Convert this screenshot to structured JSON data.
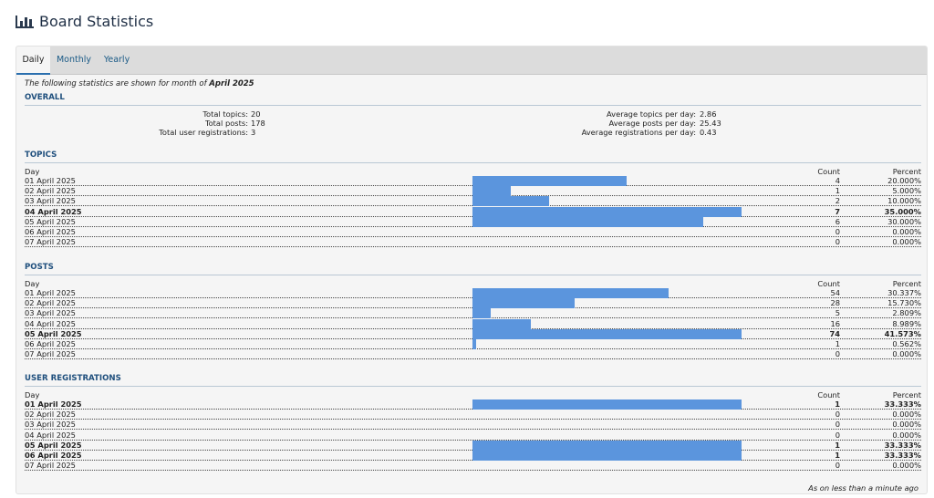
{
  "header": {
    "title": "Board Statistics",
    "icon": "bar-chart-icon"
  },
  "tabs": [
    {
      "label": "Daily",
      "active": true
    },
    {
      "label": "Monthly",
      "active": false
    },
    {
      "label": "Yearly",
      "active": false
    }
  ],
  "intro": {
    "prefix": "The following statistics are shown for month of ",
    "period": "April 2025"
  },
  "overall": {
    "title": "OVERALL",
    "left": [
      {
        "label": "Total topics:",
        "value": "20"
      },
      {
        "label": "Total posts:",
        "value": "178"
      },
      {
        "label": "Total user registrations:",
        "value": "3"
      }
    ],
    "right": [
      {
        "label": "Average topics per day:",
        "value": "2.86"
      },
      {
        "label": "Average posts per day:",
        "value": "25.43"
      },
      {
        "label": "Average registrations per day:",
        "value": "0.43"
      }
    ]
  },
  "columns": {
    "day": "Day",
    "count": "Count",
    "percent": "Percent"
  },
  "sections": [
    {
      "key": "topics",
      "title": "TOPICS",
      "rows": [
        {
          "day": "01 April 2025",
          "count": "4",
          "percent": "20.000%",
          "share": 0.5714,
          "bold": false
        },
        {
          "day": "02 April 2025",
          "count": "1",
          "percent": "5.000%",
          "share": 0.1429,
          "bold": false
        },
        {
          "day": "03 April 2025",
          "count": "2",
          "percent": "10.000%",
          "share": 0.2857,
          "bold": false
        },
        {
          "day": "04 April 2025",
          "count": "7",
          "percent": "35.000%",
          "share": 1.0,
          "bold": true
        },
        {
          "day": "05 April 2025",
          "count": "6",
          "percent": "30.000%",
          "share": 0.8571,
          "bold": false
        },
        {
          "day": "06 April 2025",
          "count": "0",
          "percent": "0.000%",
          "share": 0,
          "bold": false
        },
        {
          "day": "07 April 2025",
          "count": "0",
          "percent": "0.000%",
          "share": 0,
          "bold": false
        }
      ]
    },
    {
      "key": "posts",
      "title": "POSTS",
      "rows": [
        {
          "day": "01 April 2025",
          "count": "54",
          "percent": "30.337%",
          "share": 0.7297,
          "bold": false
        },
        {
          "day": "02 April 2025",
          "count": "28",
          "percent": "15.730%",
          "share": 0.3784,
          "bold": false
        },
        {
          "day": "03 April 2025",
          "count": "5",
          "percent": "2.809%",
          "share": 0.0676,
          "bold": false
        },
        {
          "day": "04 April 2025",
          "count": "16",
          "percent": "8.989%",
          "share": 0.2162,
          "bold": false
        },
        {
          "day": "05 April 2025",
          "count": "74",
          "percent": "41.573%",
          "share": 1.0,
          "bold": true
        },
        {
          "day": "06 April 2025",
          "count": "1",
          "percent": "0.562%",
          "share": 0.0135,
          "bold": false
        },
        {
          "day": "07 April 2025",
          "count": "0",
          "percent": "0.000%",
          "share": 0,
          "bold": false
        }
      ]
    },
    {
      "key": "registrations",
      "title": "USER REGISTRATIONS",
      "rows": [
        {
          "day": "01 April 2025",
          "count": "1",
          "percent": "33.333%",
          "share": 1.0,
          "bold": true
        },
        {
          "day": "02 April 2025",
          "count": "0",
          "percent": "0.000%",
          "share": 0,
          "bold": false
        },
        {
          "day": "03 April 2025",
          "count": "0",
          "percent": "0.000%",
          "share": 0,
          "bold": false
        },
        {
          "day": "04 April 2025",
          "count": "0",
          "percent": "0.000%",
          "share": 0,
          "bold": false
        },
        {
          "day": "05 April 2025",
          "count": "1",
          "percent": "33.333%",
          "share": 1.0,
          "bold": true
        },
        {
          "day": "06 April 2025",
          "count": "1",
          "percent": "33.333%",
          "share": 1.0,
          "bold": true
        },
        {
          "day": "07 April 2025",
          "count": "0",
          "percent": "0.000%",
          "share": 0,
          "bold": false
        }
      ]
    }
  ],
  "footer": {
    "note": "As on less than a minute ago"
  },
  "colors": {
    "bar": "#5b95dd",
    "title": "#1f4f7d",
    "link": "#1a5a86"
  }
}
